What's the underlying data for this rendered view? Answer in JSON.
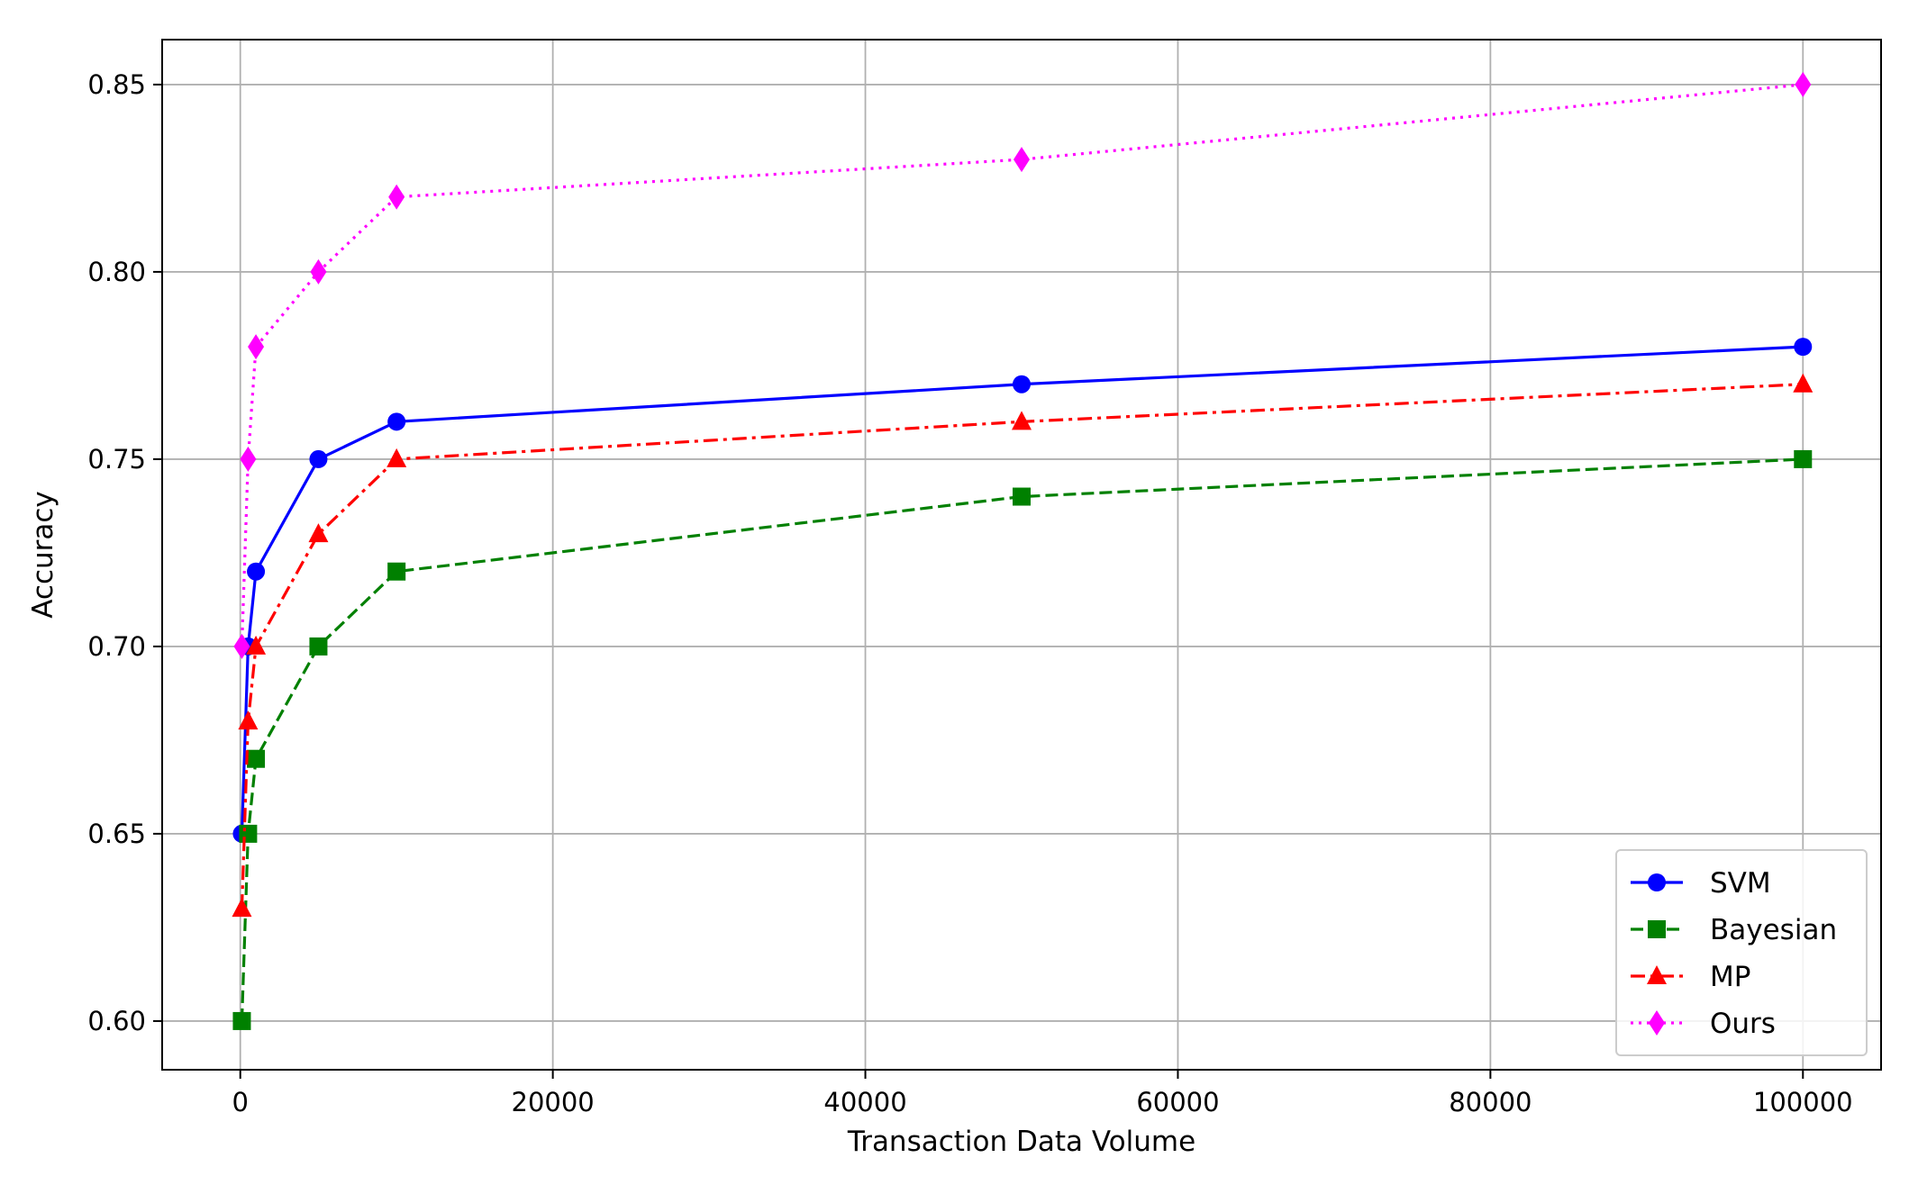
{
  "chart_data": {
    "type": "line",
    "title": "",
    "xlabel": "Transaction Data Volume",
    "ylabel": "Accuracy",
    "xlim": [
      -5000,
      105000
    ],
    "ylim": [
      0.587,
      0.862
    ],
    "xticks": [
      0,
      20000,
      40000,
      60000,
      80000,
      100000
    ],
    "xtick_labels": [
      "0",
      "20000",
      "40000",
      "60000",
      "80000",
      "100000"
    ],
    "yticks": [
      0.6,
      0.65,
      0.7,
      0.75,
      0.8,
      0.85
    ],
    "ytick_labels": [
      "0.60",
      "0.65",
      "0.70",
      "0.75",
      "0.80",
      "0.85"
    ],
    "grid": true,
    "legend_position": "lower right",
    "x": [
      100,
      500,
      1000,
      5000,
      10000,
      50000,
      100000
    ],
    "series": [
      {
        "name": "SVM",
        "values": [
          0.65,
          0.7,
          0.72,
          0.75,
          0.76,
          0.77,
          0.78
        ],
        "color": "#0000ff",
        "linestyle": "solid",
        "marker": "circle"
      },
      {
        "name": "Bayesian",
        "values": [
          0.6,
          0.65,
          0.67,
          0.7,
          0.72,
          0.74,
          0.75
        ],
        "color": "#008000",
        "linestyle": "dashed",
        "marker": "square"
      },
      {
        "name": "MP",
        "values": [
          0.63,
          0.68,
          0.7,
          0.73,
          0.75,
          0.76,
          0.77
        ],
        "color": "#ff0000",
        "linestyle": "dashdot",
        "marker": "triangle"
      },
      {
        "name": "Ours",
        "values": [
          0.7,
          0.75,
          0.78,
          0.8,
          0.82,
          0.83,
          0.85
        ],
        "color": "#ff00ff",
        "linestyle": "dotted",
        "marker": "diamond"
      }
    ]
  }
}
